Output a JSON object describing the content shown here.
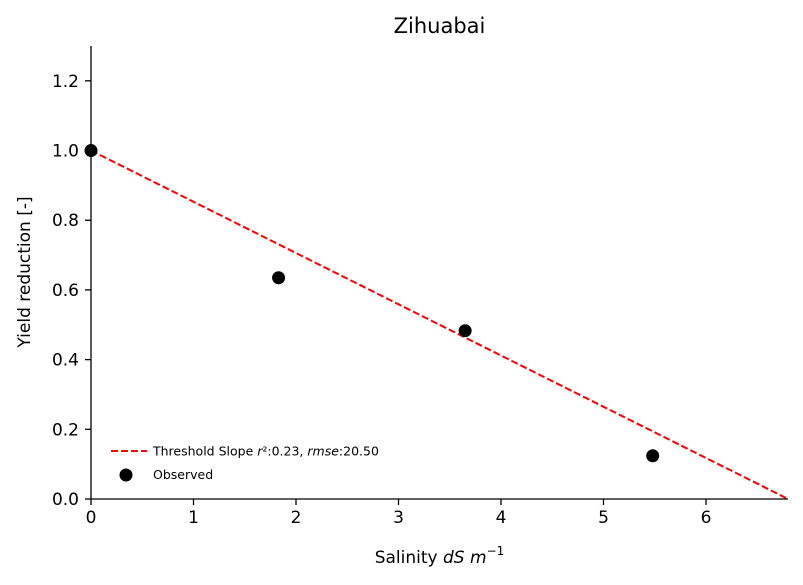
{
  "chart_data": {
    "type": "scatter",
    "title": "Zihuabai",
    "xlabel": {
      "prefix": "Salinity ",
      "italic": "dS m",
      "superscript": "−1"
    },
    "ylabel": "Yield reduction [-]",
    "xlim": [
      0,
      6.8
    ],
    "ylim": [
      0,
      1.3
    ],
    "x_ticks": [
      0,
      1,
      2,
      3,
      4,
      5,
      6
    ],
    "y_ticks": [
      0.0,
      0.2,
      0.4,
      0.6,
      0.8,
      1.0,
      1.2
    ],
    "x_tick_labels": [
      "0",
      "1",
      "2",
      "3",
      "4",
      "5",
      "6"
    ],
    "y_tick_labels": [
      "0.0",
      "0.2",
      "0.4",
      "0.6",
      "0.8",
      "1.0",
      "1.2"
    ],
    "grid": false,
    "legend_position": "lower-left",
    "series": [
      {
        "name": "Threshold Slope",
        "kind": "line",
        "style": "dashed",
        "color": "#ff0000",
        "x": [
          0,
          6.8
        ],
        "y": [
          1.0,
          0.0
        ],
        "label_parts": [
          {
            "text": "Threshold Slope ",
            "italic": false
          },
          {
            "text": "r",
            "italic": true
          },
          {
            "text": "²:0.23, ",
            "italic": false
          },
          {
            "text": "rmse",
            "italic": true
          },
          {
            "text": ":20.50",
            "italic": false
          }
        ]
      },
      {
        "name": "Observed",
        "kind": "scatter",
        "color": "#000000",
        "x": [
          0,
          1.83,
          3.65,
          5.48
        ],
        "y": [
          1.0,
          0.635,
          0.483,
          0.124
        ]
      }
    ]
  }
}
